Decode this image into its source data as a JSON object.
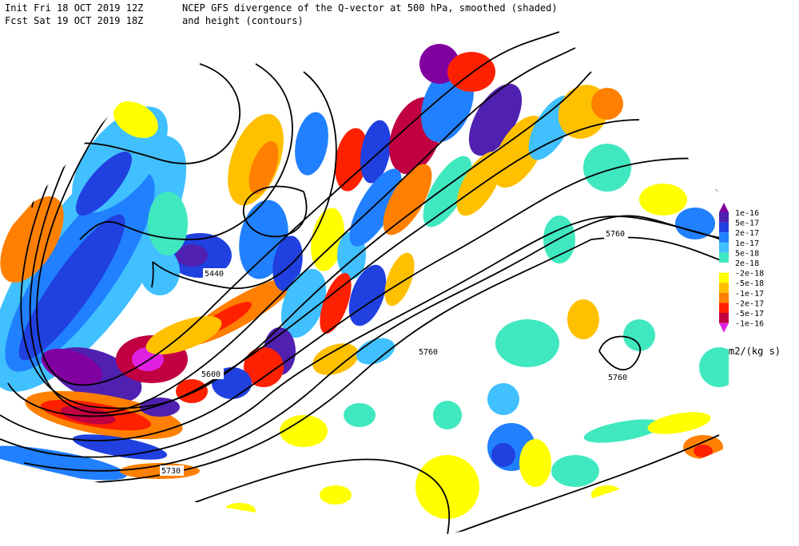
{
  "header": {
    "init": "Init  Fri 18 OCT 2019 12Z",
    "forecast": "Fcst Sat 19 OCT 2019 18Z",
    "title": "NCEP GFS divergence of the Q-vector at 500 hPa, smoothed (shaded)",
    "subtitle": "and height (contours)"
  },
  "contour_labels": [
    "5440",
    "5600",
    "5730",
    "5760",
    "5760",
    "5760"
  ],
  "colorbar": {
    "labels": [
      "1e-16",
      "5e-17",
      "2e-17",
      "1e-17",
      "5e-18",
      "2e-18",
      "-2e-18",
      "-5e-18",
      "-1e-17",
      "-2e-17",
      "-5e-17",
      "-1e-16"
    ],
    "units": "m2/(kg s)"
  }
}
